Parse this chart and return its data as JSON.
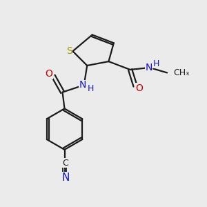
{
  "bg_color": "#ebebeb",
  "bond_color": "#1a1a1a",
  "S_color": "#999900",
  "N_color": "#1414c8",
  "O_color": "#cc0000",
  "font_size": 9,
  "fig_w": 3.0,
  "fig_h": 3.0,
  "dpi": 100,
  "xlim": [
    0,
    10
  ],
  "ylim": [
    0,
    10
  ]
}
